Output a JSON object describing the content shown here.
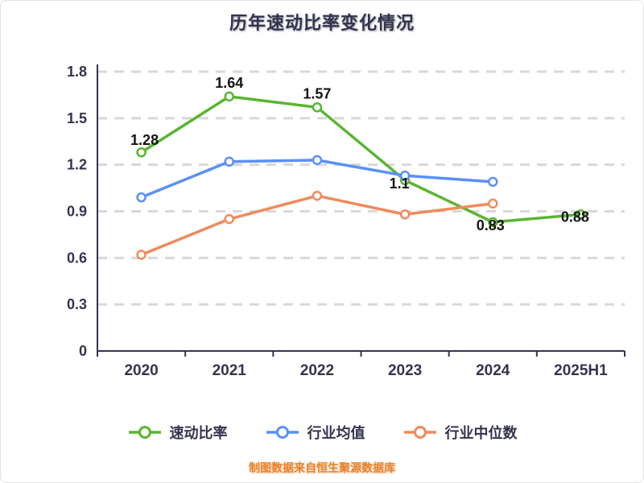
{
  "title": "历年速动比率变化情况",
  "footer_note": "制图数据来自恒生聚源数据库",
  "chart_data": {
    "type": "line",
    "title": "历年速动比率变化情况",
    "categories": [
      "2020",
      "2021",
      "2022",
      "2023",
      "2024",
      "2025H1"
    ],
    "series": [
      {
        "name": "速动比率",
        "color": "#5ab532",
        "values": [
          1.28,
          1.64,
          1.57,
          1.1,
          0.83,
          0.88
        ],
        "point_labels": [
          "1.28",
          "1.64",
          "1.57",
          "1.1",
          "0.83",
          "0.88"
        ]
      },
      {
        "name": "行业均值",
        "color": "#5b8ff9",
        "values": [
          0.99,
          1.22,
          1.23,
          1.13,
          1.09,
          null
        ],
        "point_labels": null
      },
      {
        "name": "行业中位数",
        "color": "#f08a5c",
        "values": [
          0.62,
          0.85,
          1.0,
          0.88,
          0.95,
          null
        ],
        "point_labels": null
      }
    ],
    "ylim": [
      0,
      1.8
    ],
    "yticks": [
      0,
      0.3,
      0.6,
      0.9,
      1.2,
      1.5,
      1.8
    ],
    "grid": "horizontal-dashed",
    "grid_color": "#d8d8d8",
    "axis_color": "#34344e",
    "point_label_color": "#141414",
    "legend_position": "bottom"
  }
}
